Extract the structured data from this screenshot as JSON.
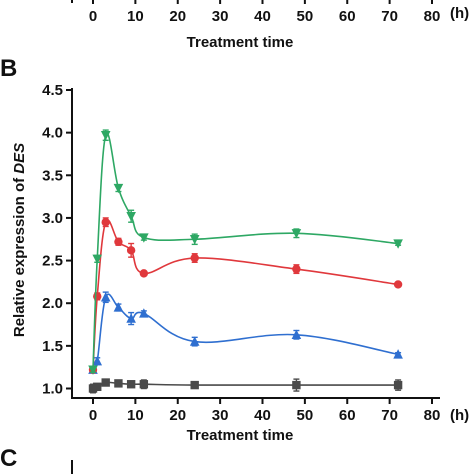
{
  "top_panel": {
    "x_ticks": [
      "0",
      "10",
      "20",
      "30",
      "40",
      "50",
      "60",
      "70",
      "80"
    ],
    "x_unit": "(h)",
    "xlabel": "Treatment time"
  },
  "panels": {
    "b_letter": "B",
    "c_letter": "C"
  },
  "chart_data": {
    "type": "line",
    "title": "",
    "xlabel": "Treatment time",
    "x_unit": "(h)",
    "ylabel_prefix": "Relative expression of ",
    "ylabel_gene": "DES",
    "xlim": [
      0,
      80
    ],
    "ylim": [
      0.8,
      4.5
    ],
    "x_ticks": [
      0,
      10,
      20,
      30,
      40,
      50,
      60,
      70,
      80
    ],
    "y_ticks": [
      1.0,
      1.5,
      2.0,
      2.5,
      3.0,
      3.5,
      4.0,
      4.5
    ],
    "y_tick_labels": [
      "1.0",
      "1.5",
      "2.0",
      "2.5",
      "3.0",
      "3.5",
      "4.0",
      "4.5"
    ],
    "grid": false,
    "legend": "none",
    "x": [
      0,
      1,
      3,
      6,
      9,
      12,
      24,
      48,
      72
    ],
    "series": [
      {
        "color": "#4a4a4a",
        "marker": "square",
        "values": [
          1.0,
          1.02,
          1.07,
          1.06,
          1.05,
          1.05,
          1.04,
          1.04,
          1.04
        ],
        "errors": [
          0.05,
          0.03,
          0.03,
          0.03,
          0.03,
          0.05,
          0.03,
          0.07,
          0.06
        ]
      },
      {
        "color": "#2f6fd0",
        "marker": "triangle-up",
        "values": [
          1.22,
          1.32,
          2.07,
          1.95,
          1.82,
          1.88,
          1.55,
          1.63,
          1.4
        ],
        "errors": [
          0.03,
          0.04,
          0.06,
          0.04,
          0.07,
          0.03,
          0.05,
          0.05,
          0.02
        ]
      },
      {
        "color": "#e0383c",
        "marker": "circle",
        "values": [
          1.22,
          2.08,
          2.95,
          2.72,
          2.62,
          2.35,
          2.53,
          2.4,
          2.22
        ],
        "errors": [
          0.03,
          0.04,
          0.05,
          0.04,
          0.08,
          0.02,
          0.05,
          0.05,
          0.02
        ]
      },
      {
        "color": "#2ea864",
        "marker": "triangle-down",
        "values": [
          1.22,
          2.52,
          3.97,
          3.35,
          3.02,
          2.77,
          2.75,
          2.82,
          2.7
        ],
        "errors": [
          0.03,
          0.04,
          0.06,
          0.04,
          0.07,
          0.03,
          0.06,
          0.05,
          0.02
        ]
      }
    ]
  }
}
